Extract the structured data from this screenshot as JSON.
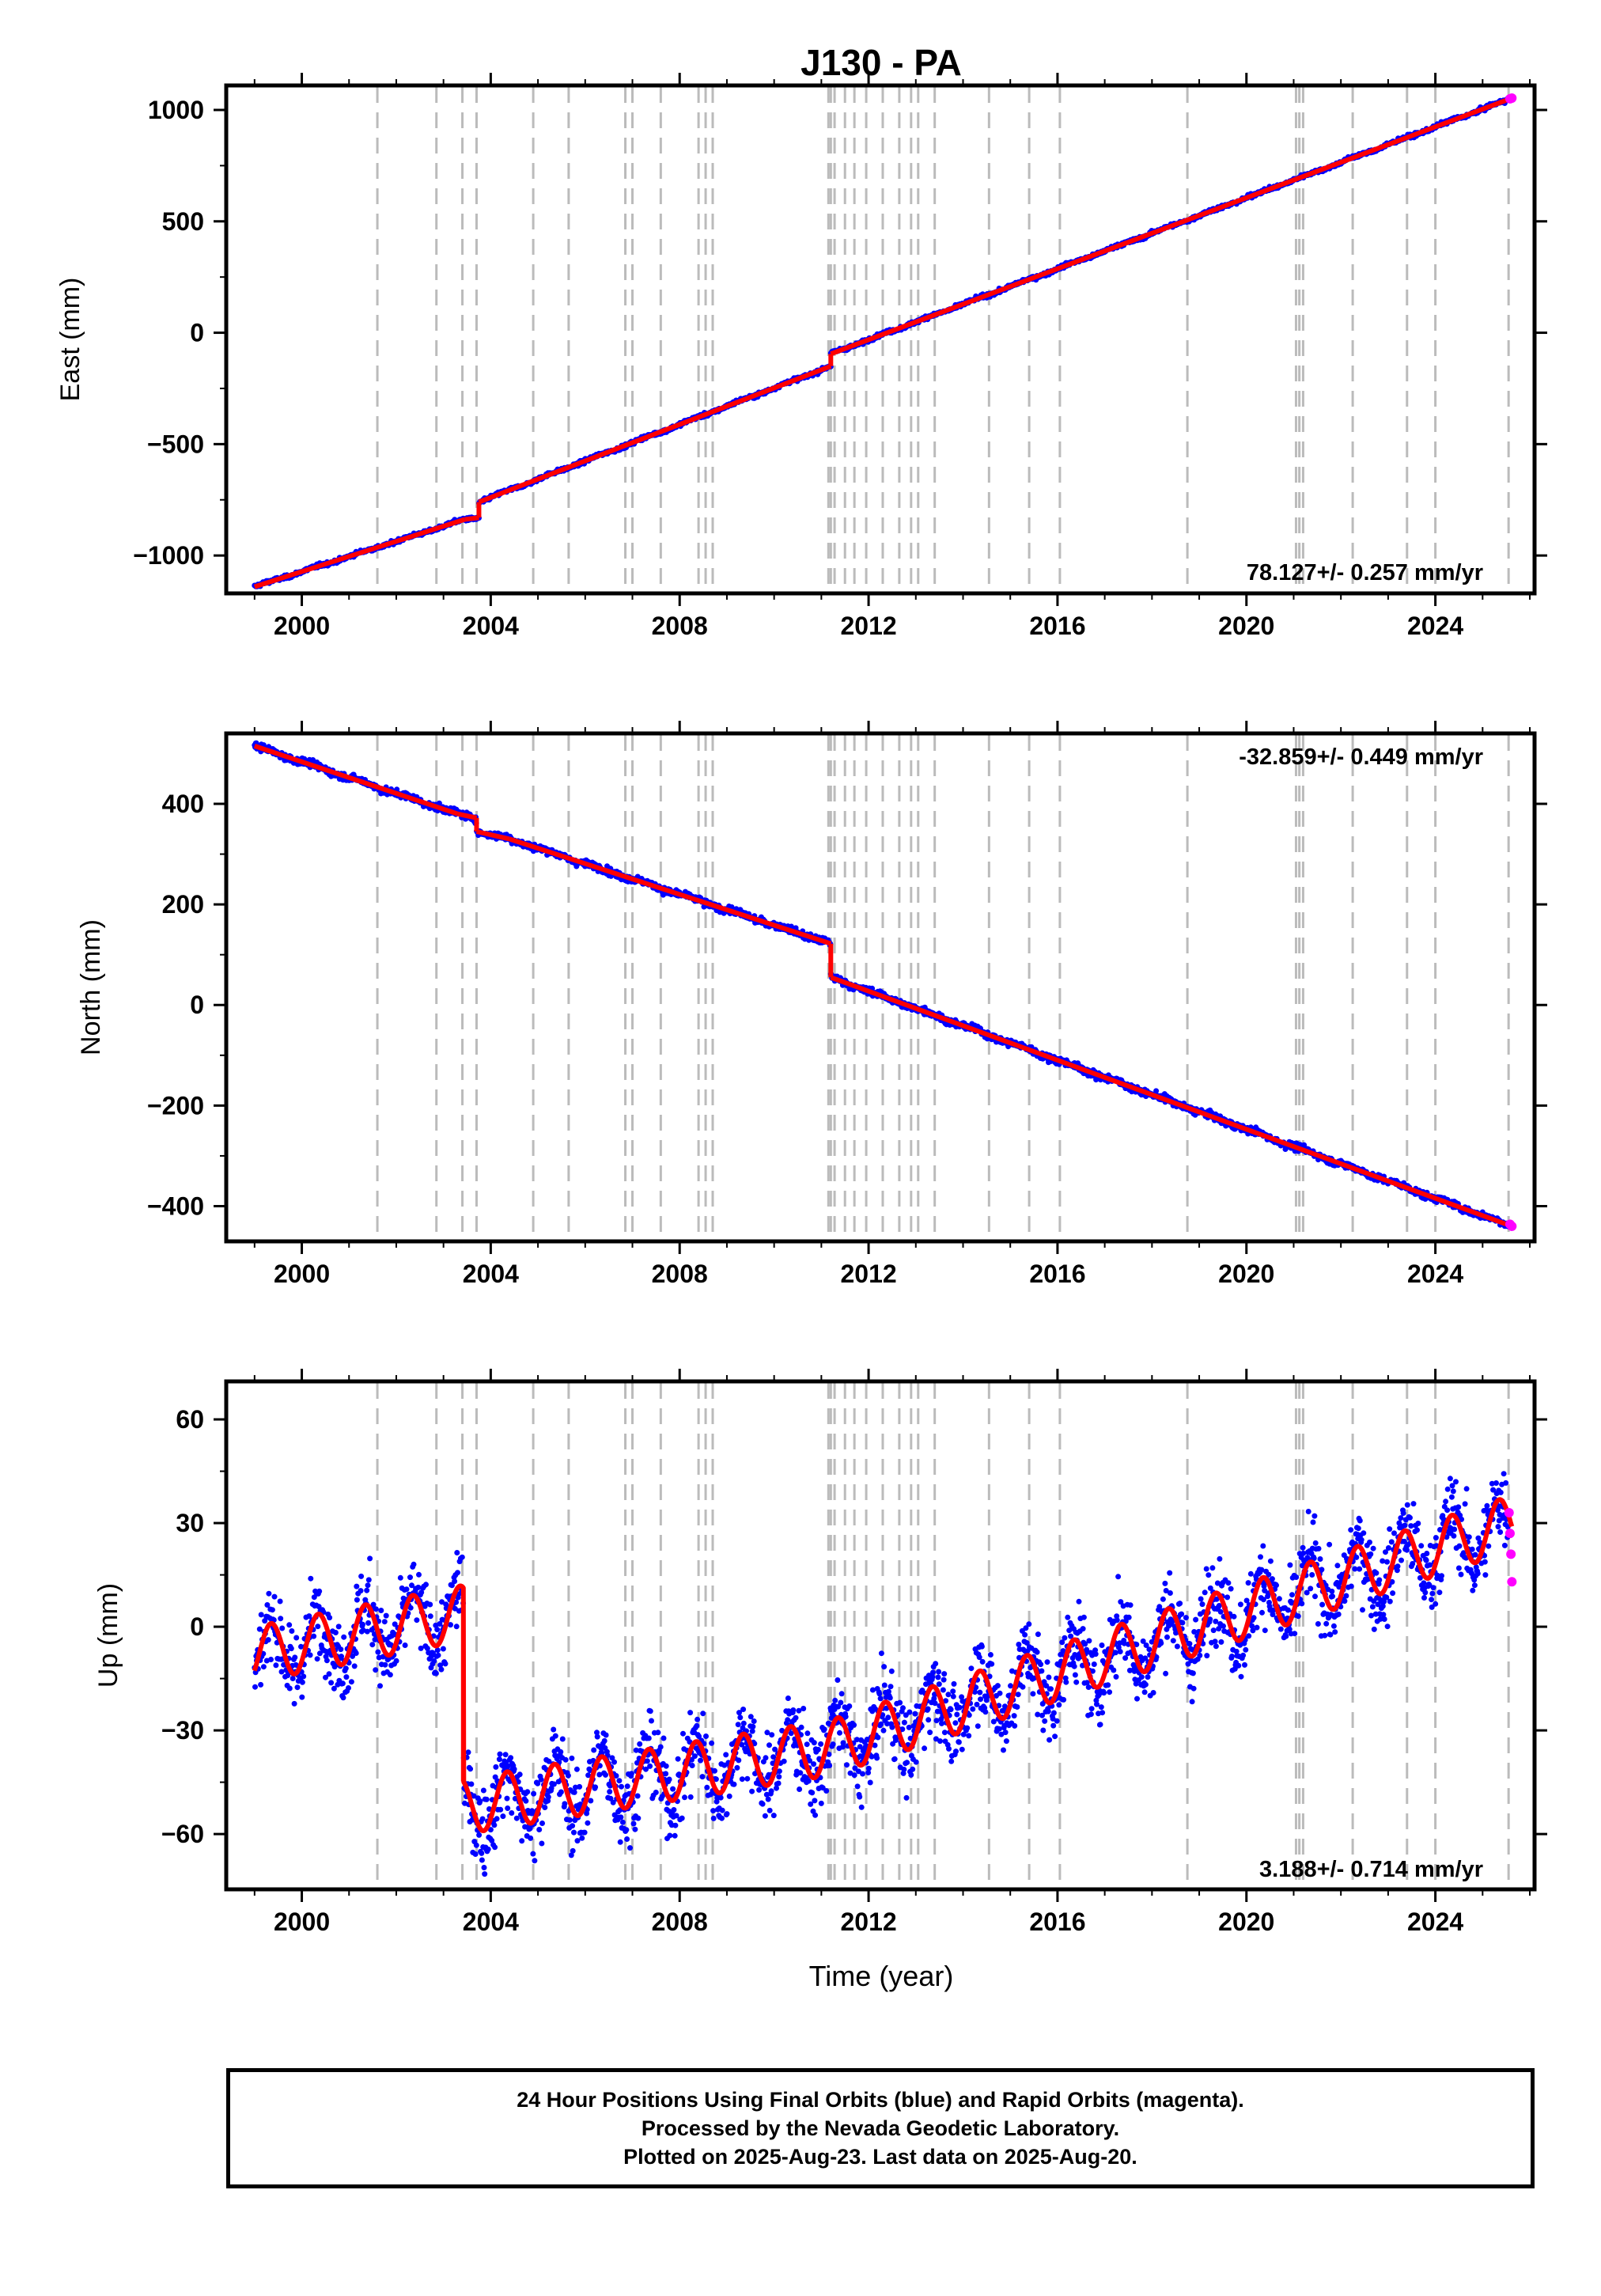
{
  "title": "J130 - PA",
  "x_label": "Time (year)",
  "x_ticks": [
    "2000",
    "2004",
    "2008",
    "2012",
    "2016",
    "2020",
    "2024"
  ],
  "caption": {
    "line1": "24 Hour Positions Using Final Orbits (blue) and Rapid Orbits (magenta).",
    "line2": "Processed by the Nevada Geodetic Laboratory.",
    "line3": "Plotted on 2025-Aug-23. Last data on 2025-Aug-20."
  },
  "colors": {
    "final_orbits": "#0000ff",
    "rapid_orbits": "#ff00ff",
    "model_fit": "#ff0000",
    "event_lines": "#bbbbbb"
  },
  "chart_data": [
    {
      "type": "scatter",
      "panel": "east",
      "ylabel": "East (mm)",
      "xlim": [
        1998.4,
        2026.1
      ],
      "ylim": [
        -1170,
        1110
      ],
      "y_ticks": [
        1000,
        500,
        0,
        -500,
        -1000
      ],
      "y_tick_labels": [
        "1000",
        "500",
        "0",
        "−500",
        "−1000"
      ],
      "rate_label": "78.127+/- 0.257 mm/yr",
      "rate_position": "bottom-right",
      "grid": false,
      "trend_segments": [
        {
          "x": [
            1999.0,
            2003.45
          ],
          "y": [
            -1140,
            -838
          ]
        },
        {
          "x": [
            2003.45,
            2003.75
          ],
          "y": [
            -838,
            -830
          ]
        },
        {
          "x": [
            2003.75,
            2004.6
          ],
          "y": [
            -760,
            -690
          ]
        },
        {
          "x": [
            2004.6,
            2011.2
          ],
          "y": [
            -690,
            -150
          ]
        },
        {
          "x": [
            2011.2,
            2025.62
          ],
          "y": [
            -95,
            1053
          ]
        }
      ],
      "rapid_points": [
        {
          "x": 2025.58,
          "y": 1050
        },
        {
          "x": 2025.62,
          "y": 1053
        }
      ]
    },
    {
      "type": "scatter",
      "panel": "north",
      "ylabel": "North (mm)",
      "xlim": [
        1998.4,
        2026.1
      ],
      "ylim": [
        -470,
        540
      ],
      "y_ticks": [
        400,
        200,
        0,
        -200,
        -400
      ],
      "y_tick_labels": [
        "400",
        "200",
        "0",
        "−200",
        "−400"
      ],
      "rate_label": "-32.859+/- 0.449 mm/yr",
      "rate_position": "top-right",
      "grid": false,
      "trend_segments": [
        {
          "x": [
            1999.0,
            2003.3
          ],
          "y": [
            515,
            380
          ]
        },
        {
          "x": [
            2003.3,
            2003.7
          ],
          "y": [
            380,
            372
          ]
        },
        {
          "x": [
            2003.7,
            2004.4
          ],
          "y": [
            345,
            330
          ]
        },
        {
          "x": [
            2004.4,
            2011.2
          ],
          "y": [
            330,
            122
          ]
        },
        {
          "x": [
            2011.2,
            2025.62
          ],
          "y": [
            55,
            -440
          ]
        }
      ],
      "rapid_points": [
        {
          "x": 2025.58,
          "y": -436
        },
        {
          "x": 2025.62,
          "y": -440
        }
      ]
    },
    {
      "type": "scatter",
      "panel": "up",
      "ylabel": "Up (mm)",
      "xlim": [
        1998.4,
        2026.1
      ],
      "ylim": [
        -76,
        71
      ],
      "y_ticks": [
        60,
        30,
        0,
        -30,
        -60
      ],
      "y_tick_labels": [
        "60",
        "30",
        "0",
        "−30",
        "−60"
      ],
      "rate_label": "3.188+/- 0.714 mm/yr",
      "rate_position": "bottom-right",
      "grid": false,
      "offset_at": 2003.42,
      "trend_before": {
        "x": [
          1999.0,
          2003.42
        ],
        "y": [
          -8,
          4
        ]
      },
      "trend_after": {
        "x": [
          2003.42,
          2011.2,
          2025.62
        ],
        "y": [
          -52,
          -35,
          30
        ]
      },
      "seasonal_amplitude": 8,
      "rapid_points": [
        {
          "x": 2025.56,
          "y": 33
        },
        {
          "x": 2025.58,
          "y": 27
        },
        {
          "x": 2025.6,
          "y": 21
        },
        {
          "x": 2025.62,
          "y": 13
        }
      ]
    }
  ],
  "event_lines_x": [
    2001.6,
    2002.85,
    2003.4,
    2003.7,
    2004.9,
    2005.65,
    2006.85,
    2007.0,
    2007.6,
    2008.4,
    2008.55,
    2008.7,
    2011.15,
    2011.2,
    2011.28,
    2011.5,
    2011.7,
    2011.95,
    2012.3,
    2012.65,
    2012.9,
    2013.05,
    2013.4,
    2014.55,
    2015.4,
    2016.05,
    2018.75,
    2021.05,
    2021.12,
    2021.2,
    2022.25,
    2023.4,
    2024.0,
    2025.55
  ]
}
